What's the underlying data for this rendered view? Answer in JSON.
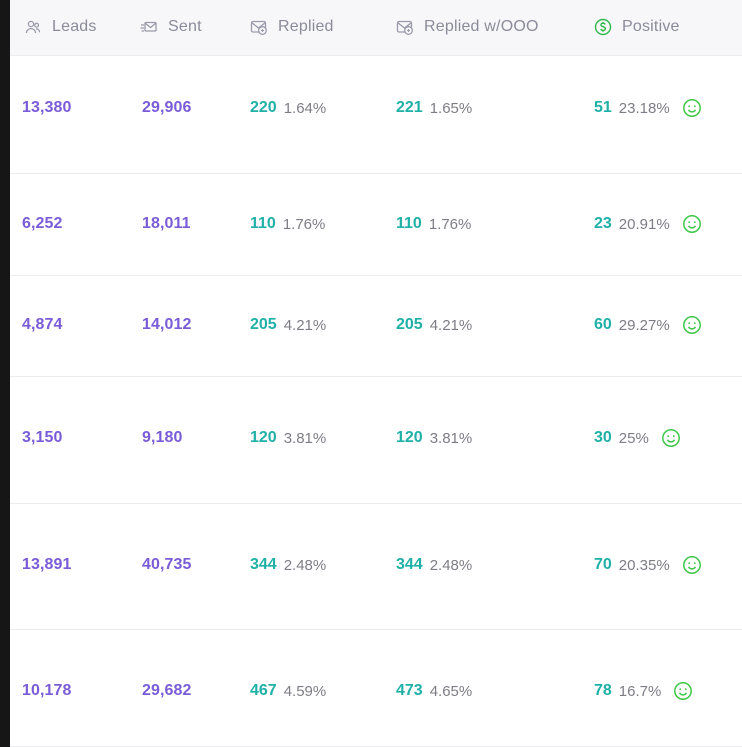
{
  "header": {
    "columns": [
      {
        "label": "Leads",
        "icon": "users-icon"
      },
      {
        "label": "Sent",
        "icon": "sent-envelope-icon"
      },
      {
        "label": "Replied",
        "icon": "replied-envelope-icon"
      },
      {
        "label": "Replied w/OOO",
        "icon": "replied-ooo-envelope-icon"
      },
      {
        "label": "Positive",
        "icon": "dollar-circle-icon"
      }
    ]
  },
  "colors": {
    "leads_sent": "#7a5cd8",
    "replied_counts": "#1fb0a7",
    "percent_text": "#7d7d86",
    "header_text": "#8b8b9a",
    "smiley": "#3fc84a"
  },
  "rows": [
    {
      "leads": "13,380",
      "sent": "29,906",
      "replied": "220",
      "replied_pct": "1.64%",
      "replied_ooo": "221",
      "replied_ooo_pct": "1.65%",
      "positive": "51",
      "positive_pct": "23.18%",
      "sentiment_icon": "smiley-icon"
    },
    {
      "leads": "6,252",
      "sent": "18,011",
      "replied": "110",
      "replied_pct": "1.76%",
      "replied_ooo": "110",
      "replied_ooo_pct": "1.76%",
      "positive": "23",
      "positive_pct": "20.91%",
      "sentiment_icon": "smiley-icon"
    },
    {
      "leads": "4,874",
      "sent": "14,012",
      "replied": "205",
      "replied_pct": "4.21%",
      "replied_ooo": "205",
      "replied_ooo_pct": "4.21%",
      "positive": "60",
      "positive_pct": "29.27%",
      "sentiment_icon": "smiley-icon"
    },
    {
      "leads": "3,150",
      "sent": "9,180",
      "replied": "120",
      "replied_pct": "3.81%",
      "replied_ooo": "120",
      "replied_ooo_pct": "3.81%",
      "positive": "30",
      "positive_pct": "25%",
      "sentiment_icon": "smiley-icon"
    },
    {
      "leads": "13,891",
      "sent": "40,735",
      "replied": "344",
      "replied_pct": "2.48%",
      "replied_ooo": "344",
      "replied_ooo_pct": "2.48%",
      "positive": "70",
      "positive_pct": "20.35%",
      "sentiment_icon": "smiley-icon"
    },
    {
      "leads": "10,178",
      "sent": "29,682",
      "replied": "467",
      "replied_pct": "4.59%",
      "replied_ooo": "473",
      "replied_ooo_pct": "4.65%",
      "positive": "78",
      "positive_pct": "16.7%",
      "sentiment_icon": "smiley-icon"
    }
  ]
}
